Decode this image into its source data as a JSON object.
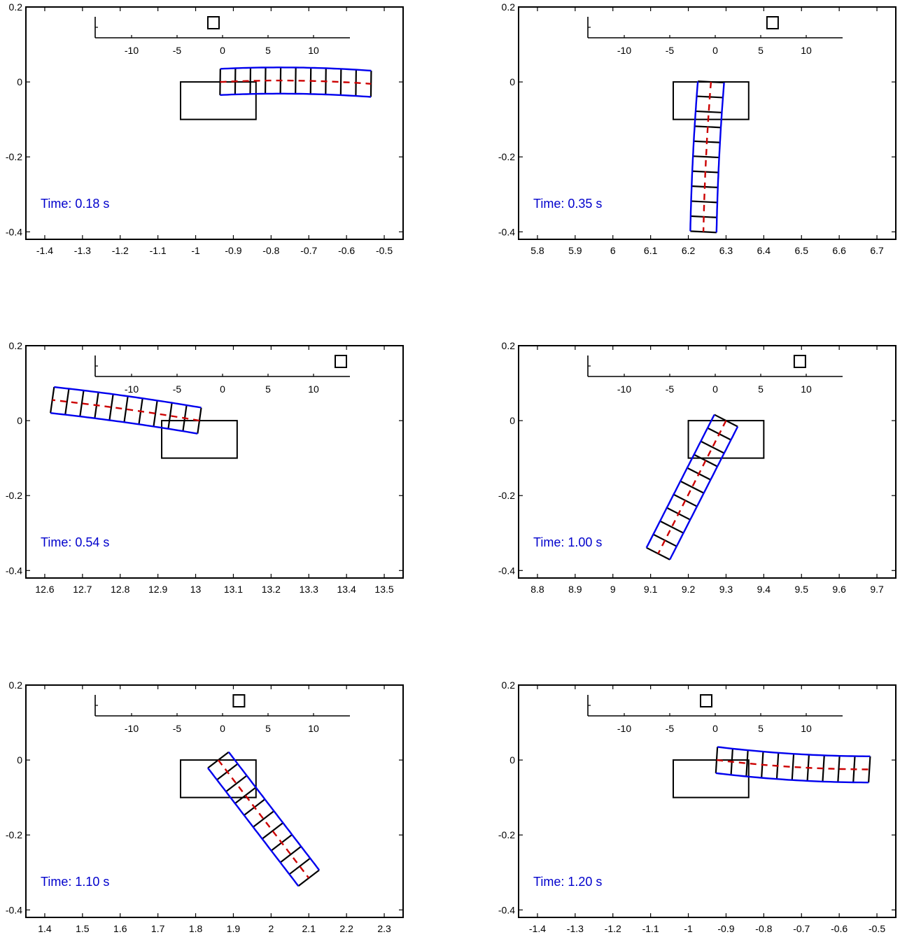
{
  "chart_data": [
    {
      "type": "line",
      "time_label": "Time: 0.18 s",
      "xlim": [
        -1.45,
        -0.45
      ],
      "ylim": [
        -0.42,
        0.2
      ],
      "xticks": [
        -1.4,
        -1.3,
        -1.2,
        -1.1,
        -1,
        -0.9,
        -0.8,
        -0.7,
        -0.6,
        -0.5
      ],
      "xtick_labels": [
        "-1.4",
        "-1.3",
        "-1.2",
        "-1.1",
        "-1",
        "-0.9",
        "-0.8",
        "-0.7",
        "-0.6",
        "-0.5"
      ],
      "yticks": [
        -0.4,
        -0.2,
        0,
        0.2
      ],
      "ytick_labels": [
        "-0.4",
        "-0.2",
        "0",
        "0.2"
      ],
      "rect": {
        "x": [
          -1.04,
          -0.84
        ],
        "y": [
          -0.1,
          0
        ]
      },
      "beam": {
        "start": [
          -0.935,
          0.0
        ],
        "end": [
          -0.535,
          -0.005
        ],
        "width": 0.07,
        "sag": 0.006,
        "segments": 10
      },
      "inset": {
        "ticks": [
          -10,
          -5,
          0,
          5,
          10
        ],
        "tick_labels": [
          "-10",
          "-5",
          "0",
          "5",
          "10"
        ],
        "xlim": [
          -14,
          14
        ],
        "marker": -1
      },
      "colors": {
        "beam": "#0000ee",
        "centerline": "#cc0000",
        "rungs": "#000000",
        "time": "#0000cc"
      }
    },
    {
      "type": "line",
      "time_label": "Time: 0.35 s",
      "xlim": [
        5.75,
        6.75
      ],
      "ylim": [
        -0.42,
        0.2
      ],
      "xticks": [
        5.8,
        5.9,
        6,
        6.1,
        6.2,
        6.3,
        6.4,
        6.5,
        6.6,
        6.7
      ],
      "xtick_labels": [
        "5.8",
        "5.9",
        "6",
        "6.1",
        "6.2",
        "6.3",
        "6.4",
        "6.5",
        "6.6",
        "6.7"
      ],
      "yticks": [
        -0.4,
        -0.2,
        0,
        0.2
      ],
      "ytick_labels": [
        "-0.4",
        "-0.2",
        "0",
        "0.2"
      ],
      "rect": {
        "x": [
          6.16,
          6.36
        ],
        "y": [
          -0.1,
          0
        ]
      },
      "beam": {
        "start": [
          6.26,
          0.0
        ],
        "end": [
          6.24,
          -0.4
        ],
        "width": 0.07,
        "sag": 0.003,
        "segments": 10
      },
      "inset": {
        "ticks": [
          -10,
          -5,
          0,
          5,
          10
        ],
        "tick_labels": [
          "-10",
          "-5",
          "0",
          "5",
          "10"
        ],
        "xlim": [
          -14,
          14
        ],
        "marker": 6.3
      },
      "colors": {
        "beam": "#0000ee",
        "centerline": "#cc0000",
        "rungs": "#000000",
        "time": "#0000cc"
      }
    },
    {
      "type": "line",
      "time_label": "Time: 0.54 s",
      "xlim": [
        12.55,
        13.55
      ],
      "ylim": [
        -0.42,
        0.2
      ],
      "xticks": [
        12.6,
        12.7,
        12.8,
        12.9,
        13,
        13.1,
        13.2,
        13.3,
        13.4,
        13.5
      ],
      "xtick_labels": [
        "12.6",
        "12.7",
        "12.8",
        "12.9",
        "13",
        "13.1",
        "13.2",
        "13.3",
        "13.4",
        "13.5"
      ],
      "yticks": [
        -0.4,
        -0.2,
        0,
        0.2
      ],
      "ytick_labels": [
        "-0.4",
        "-0.2",
        "0",
        "0.2"
      ],
      "rect": {
        "x": [
          12.91,
          13.11
        ],
        "y": [
          -0.1,
          0
        ]
      },
      "beam": {
        "start": [
          13.01,
          0.0
        ],
        "end": [
          12.62,
          0.055
        ],
        "width": 0.07,
        "sag": 0.003,
        "segments": 10
      },
      "inset": {
        "ticks": [
          -10,
          -5,
          0,
          5,
          10
        ],
        "tick_labels": [
          "-10",
          "-5",
          "0",
          "5",
          "10"
        ],
        "xlim": [
          -14,
          14
        ],
        "marker": 13
      },
      "colors": {
        "beam": "#0000ee",
        "centerline": "#cc0000",
        "rungs": "#000000",
        "time": "#0000cc"
      }
    },
    {
      "type": "line",
      "time_label": "Time: 1.00 s",
      "xlim": [
        8.75,
        9.75
      ],
      "ylim": [
        -0.42,
        0.2
      ],
      "xticks": [
        8.8,
        8.9,
        9,
        9.1,
        9.2,
        9.3,
        9.4,
        9.5,
        9.6,
        9.7
      ],
      "xtick_labels": [
        "8.8",
        "8.9",
        "9",
        "9.1",
        "9.2",
        "9.3",
        "9.4",
        "9.5",
        "9.6",
        "9.7"
      ],
      "yticks": [
        -0.4,
        -0.2,
        0,
        0.2
      ],
      "ytick_labels": [
        "-0.4",
        "-0.2",
        "0",
        "0.2"
      ],
      "rect": {
        "x": [
          9.2,
          9.4
        ],
        "y": [
          -0.1,
          0
        ]
      },
      "beam": {
        "start": [
          9.3,
          0.0
        ],
        "end": [
          9.12,
          -0.355
        ],
        "width": 0.07,
        "sag": 0.0,
        "segments": 10
      },
      "inset": {
        "ticks": [
          -10,
          -5,
          0,
          5,
          10
        ],
        "tick_labels": [
          "-10",
          "-5",
          "0",
          "5",
          "10"
        ],
        "xlim": [
          -14,
          14
        ],
        "marker": 9.3
      },
      "colors": {
        "beam": "#0000ee",
        "centerline": "#cc0000",
        "rungs": "#000000",
        "time": "#0000cc"
      }
    },
    {
      "type": "line",
      "time_label": "Time: 1.10 s",
      "xlim": [
        1.35,
        2.35
      ],
      "ylim": [
        -0.42,
        0.2
      ],
      "xticks": [
        1.4,
        1.5,
        1.6,
        1.7,
        1.8,
        1.9,
        2,
        2.1,
        2.2,
        2.3
      ],
      "xtick_labels": [
        "1.4",
        "1.5",
        "1.6",
        "1.7",
        "1.8",
        "1.9",
        "2",
        "2.1",
        "2.2",
        "2.3"
      ],
      "yticks": [
        -0.4,
        -0.2,
        0,
        0.2
      ],
      "ytick_labels": [
        "-0.4",
        "-0.2",
        "0",
        "0.2"
      ],
      "rect": {
        "x": [
          1.76,
          1.96
        ],
        "y": [
          -0.1,
          0
        ]
      },
      "beam": {
        "start": [
          1.86,
          0.0
        ],
        "end": [
          2.1,
          -0.315
        ],
        "width": 0.07,
        "sag": 0.0,
        "segments": 10
      },
      "inset": {
        "ticks": [
          -10,
          -5,
          0,
          5,
          10
        ],
        "tick_labels": [
          "-10",
          "-5",
          "0",
          "5",
          "10"
        ],
        "xlim": [
          -14,
          14
        ],
        "marker": 1.8
      },
      "colors": {
        "beam": "#0000ee",
        "centerline": "#cc0000",
        "rungs": "#000000",
        "time": "#0000cc"
      }
    },
    {
      "type": "line",
      "time_label": "Time: 1.20 s",
      "xlim": [
        -1.45,
        -0.45
      ],
      "ylim": [
        -0.42,
        0.2
      ],
      "xticks": [
        -1.4,
        -1.3,
        -1.2,
        -1.1,
        -1,
        -0.9,
        -0.8,
        -0.7,
        -0.6,
        -0.5
      ],
      "xtick_labels": [
        "-1.4",
        "-1.3",
        "-1.2",
        "-1.1",
        "-1",
        "-0.9",
        "-0.8",
        "-0.7",
        "-0.6",
        "-0.5"
      ],
      "yticks": [
        -0.4,
        -0.2,
        0,
        0.2
      ],
      "ytick_labels": [
        "-0.4",
        "-0.2",
        "0",
        "0.2"
      ],
      "rect": {
        "x": [
          -1.04,
          -0.84
        ],
        "y": [
          -0.1,
          0
        ]
      },
      "beam": {
        "start": [
          -0.925,
          0.0
        ],
        "end": [
          -0.52,
          -0.025
        ],
        "width": 0.07,
        "sag": -0.006,
        "segments": 10
      },
      "inset": {
        "ticks": [
          -10,
          -5,
          0,
          5,
          10
        ],
        "tick_labels": [
          "-10",
          "-5",
          "0",
          "5",
          "10"
        ],
        "xlim": [
          -14,
          14
        ],
        "marker": -1
      },
      "colors": {
        "beam": "#0000ee",
        "centerline": "#cc0000",
        "rungs": "#000000",
        "time": "#0000cc"
      }
    }
  ]
}
